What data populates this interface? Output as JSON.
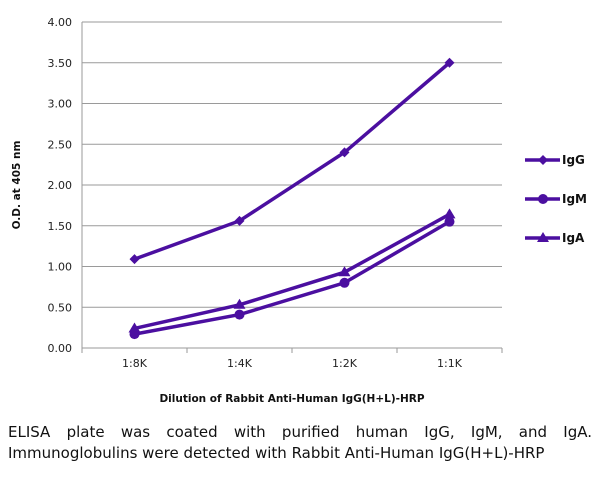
{
  "chart_data": {
    "type": "line",
    "categories": [
      "1:8K",
      "1:4K",
      "1:2K",
      "1:1K"
    ],
    "series": [
      {
        "name": "IgG",
        "marker": "diamond",
        "values": [
          1.09,
          1.56,
          2.4,
          3.5
        ]
      },
      {
        "name": "IgM",
        "marker": "circle",
        "values": [
          0.17,
          0.41,
          0.8,
          1.55
        ]
      },
      {
        "name": "IgA",
        "marker": "triangle",
        "values": [
          0.24,
          0.53,
          0.93,
          1.64
        ]
      }
    ],
    "ylabel": "O.D. at 405 nm",
    "xlabel": "Dilution of Rabbit Anti-Human IgG(H+L)-HRP",
    "ylim": [
      0,
      4
    ],
    "yticks": [
      "0.00",
      "0.50",
      "1.00",
      "1.50",
      "2.00",
      "2.50",
      "3.00",
      "3.50",
      "4.00"
    ],
    "grid": true,
    "legend": "right",
    "color": "#4B0FA0"
  },
  "caption": "ELISA plate was coated with purified human IgG, IgM, and IgA. Immunoglobulins were detected with Rabbit Anti-Human IgG(H+L)-HRP"
}
